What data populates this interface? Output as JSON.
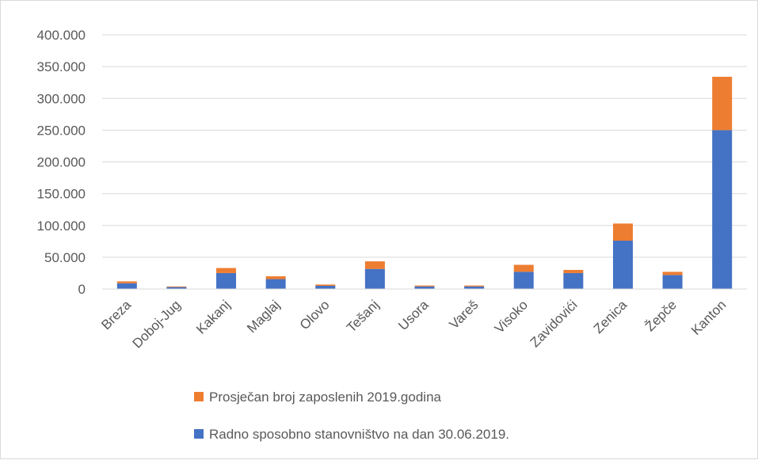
{
  "chart_data": {
    "type": "bar",
    "stacked": true,
    "categories": [
      "Breza",
      "Doboj-Jug",
      "Kakanj",
      "Maglaj",
      "Olovo",
      "Tešanj",
      "Usora",
      "Vareš",
      "Visoko",
      "Zavidovići",
      "Zenica",
      "Žepče",
      "Kanton"
    ],
    "series": [
      {
        "name": "Radno sposobno stanovništvo na dan 30.06.2019.",
        "color": "#4472c4",
        "values": [
          9000,
          3000,
          25000,
          15500,
          5000,
          31500,
          4000,
          4000,
          27000,
          25000,
          76000,
          22000,
          250000
        ]
      },
      {
        "name": "Prosječan broj zaposlenih 2019.godina",
        "color": "#ed7d31",
        "values": [
          3000,
          1000,
          8000,
          4500,
          2000,
          12000,
          1500,
          1500,
          11000,
          5000,
          27000,
          5000,
          84000
        ]
      }
    ],
    "ylim": [
      0,
      400000
    ],
    "yticks": [
      "0",
      "50.000",
      "100.000",
      "150.000",
      "200.000",
      "250.000",
      "300.000",
      "350.000",
      "400.000"
    ],
    "ytick_step": 50000,
    "grid": true,
    "legend_position": "bottom",
    "legend_order": [
      1,
      0
    ],
    "title": "",
    "xlabel": "",
    "ylabel": ""
  }
}
